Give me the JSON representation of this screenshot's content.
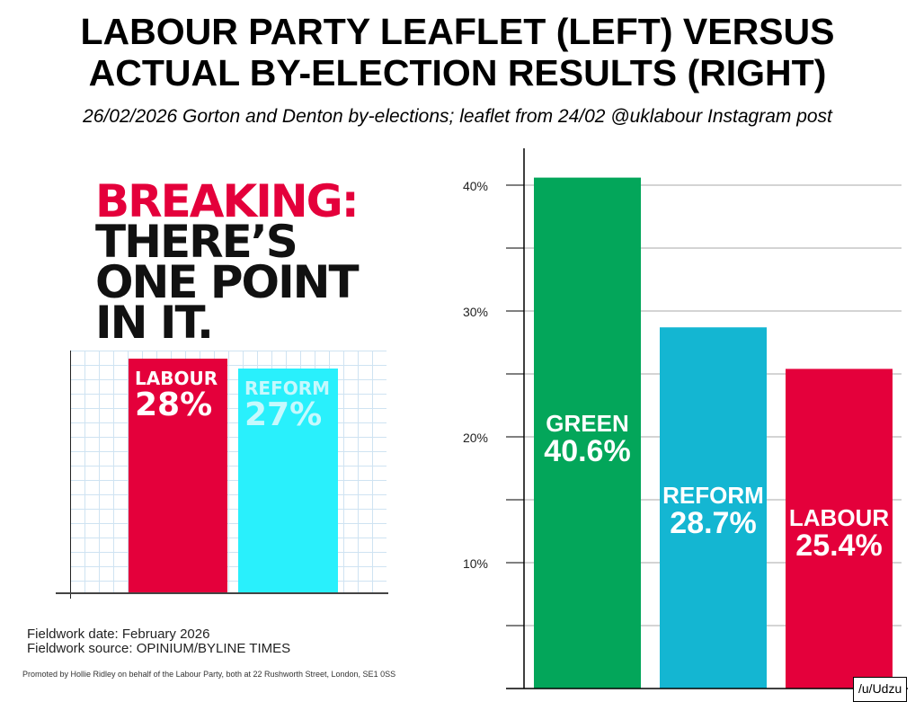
{
  "title_lines": [
    "LABOUR PARTY LEAFLET (LEFT) VERSUS",
    "ACTUAL BY-ELECTION RESULTS (RIGHT)"
  ],
  "subtitle": "26/02/2026 Gorton and Denton by-elections; leaflet from 24/02 @uklabour Instagram post",
  "leaflet": {
    "headline": [
      "BREAKING:",
      "THERE’S",
      "ONE POINT",
      "IN IT."
    ],
    "bars": [
      {
        "name": "LABOUR",
        "value": "28%",
        "color": "#e4003b",
        "text_color": "#ffffff"
      },
      {
        "name": "REFORM",
        "value": "27%",
        "color": "#29f0fc",
        "text_color": "#c6f9fd"
      }
    ],
    "fieldwork_date": "Fieldwork date: February 2026",
    "fieldwork_source": "Fieldwork source: OPINIUM/BYLINE TIMES",
    "promoted": "Promoted by Hollie Ridley on behalf of the Labour Party, both at 22 Rushworth Street, London, SE1 0SS"
  },
  "chart_data": {
    "type": "bar",
    "categories": [
      "GREEN",
      "REFORM",
      "LABOUR"
    ],
    "values": [
      40.6,
      28.7,
      25.4
    ],
    "labels": [
      "40.6%",
      "28.7%",
      "25.4%"
    ],
    "colors": [
      "#03a65a",
      "#14b6d2",
      "#e4003b"
    ],
    "ylim": [
      0,
      42
    ],
    "yticks": [
      10,
      20,
      30,
      40
    ],
    "ytick_labels": [
      "10%",
      "20%",
      "30%",
      "40%"
    ],
    "grid": true
  },
  "credit": "/u/Udzu"
}
